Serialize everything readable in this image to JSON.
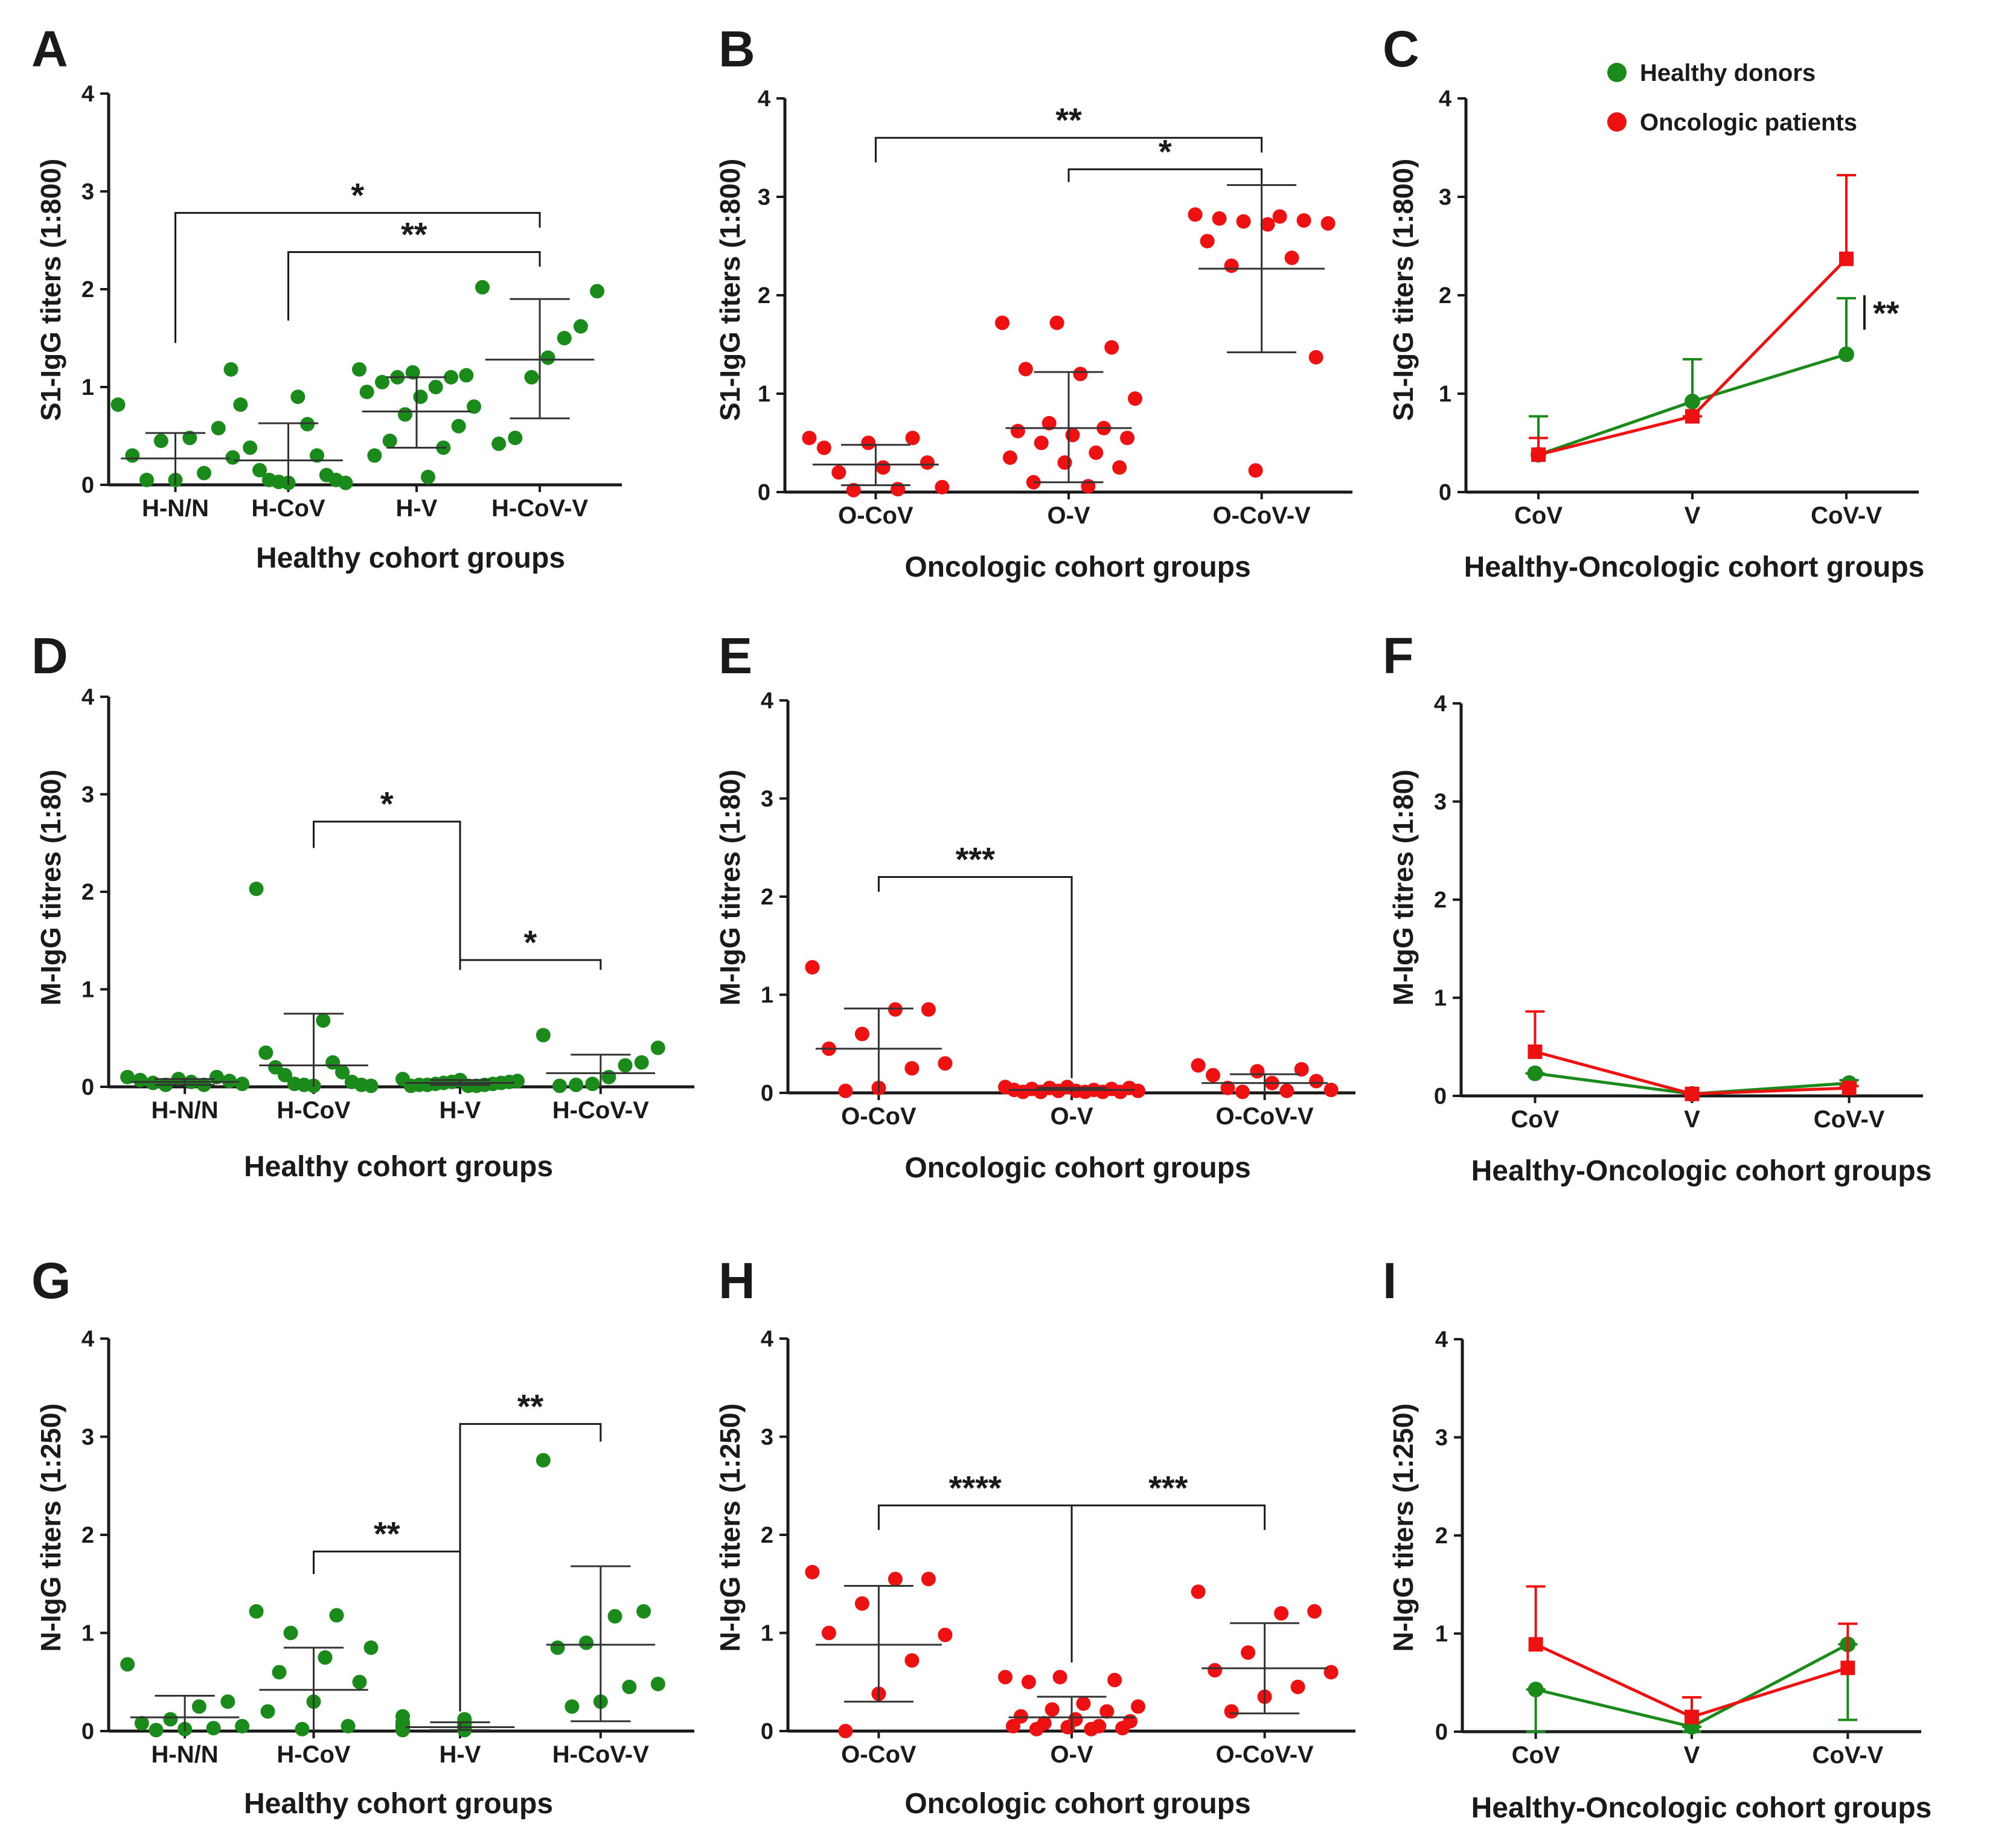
{
  "chart_data": [
    {
      "type": "scatter",
      "panel": "A",
      "title": "",
      "ylabel": "S1-IgG titers (1:800)",
      "xlabel": "Healthy cohort groups",
      "ylim": [
        0,
        4
      ],
      "yticks": [
        "0",
        "1",
        "2",
        "3",
        "4"
      ],
      "color": "#1a8a1a",
      "categories": [
        "H-N/N",
        "H-CoV",
        "H-V",
        "H-CoV-V"
      ],
      "groups": [
        {
          "name": "H-N/N",
          "mean": 0.27,
          "sd_low": 0.0,
          "sd_high": 0.53,
          "points": [
            0.82,
            0.58,
            0.48,
            0.45,
            0.3,
            0.28,
            0.12,
            0.05,
            0.05
          ]
        },
        {
          "name": "H-CoV",
          "mean": 0.25,
          "sd_low": 0.0,
          "sd_high": 0.63,
          "points": [
            1.18,
            0.9,
            0.82,
            0.62,
            0.38,
            0.3,
            0.15,
            0.1,
            0.05,
            0.05,
            0.03,
            0.02,
            0.02
          ]
        },
        {
          "name": "H-V",
          "mean": 0.75,
          "sd_low": 0.38,
          "sd_high": 1.1,
          "points": [
            1.18,
            1.15,
            1.12,
            1.1,
            1.1,
            1.05,
            1.0,
            0.95,
            0.9,
            0.8,
            0.72,
            0.6,
            0.45,
            0.38,
            0.3,
            0.08
          ]
        },
        {
          "name": "H-CoV-V",
          "mean": 1.28,
          "sd_low": 0.68,
          "sd_high": 1.9,
          "points": [
            2.02,
            1.98,
            1.62,
            1.5,
            1.3,
            1.1,
            0.48,
            0.42
          ]
        }
      ],
      "significance": [
        {
          "from": "H-N/N",
          "to": "H-CoV-V",
          "label": "*",
          "level": 2.78,
          "drop_from": 1.45
        },
        {
          "from": "H-CoV",
          "to": "H-CoV-V",
          "label": "**",
          "level": 2.38,
          "drop_from": 1.68
        }
      ]
    },
    {
      "type": "scatter",
      "panel": "B",
      "title": "",
      "ylabel": "S1-IgG titers (1:800)",
      "xlabel": "Oncologic cohort groups",
      "ylim": [
        0,
        4
      ],
      "yticks": [
        "0",
        "1",
        "2",
        "3",
        "4"
      ],
      "color": "#ee1111",
      "categories": [
        "O-CoV",
        "O-V",
        "O-CoV-V"
      ],
      "groups": [
        {
          "name": "O-CoV",
          "mean": 0.28,
          "sd_low": 0.07,
          "sd_high": 0.48,
          "points": [
            0.55,
            0.55,
            0.5,
            0.45,
            0.3,
            0.25,
            0.2,
            0.05,
            0.03,
            0.02
          ]
        },
        {
          "name": "O-V",
          "mean": 0.65,
          "sd_low": 0.1,
          "sd_high": 1.22,
          "points": [
            1.72,
            1.72,
            1.47,
            1.25,
            1.2,
            0.95,
            0.7,
            0.65,
            0.62,
            0.58,
            0.55,
            0.5,
            0.4,
            0.35,
            0.3,
            0.25,
            0.1,
            0.06
          ]
        },
        {
          "name": "O-CoV-V",
          "mean": 2.27,
          "sd_low": 1.42,
          "sd_high": 3.12,
          "points": [
            2.82,
            2.8,
            2.78,
            2.76,
            2.75,
            2.73,
            2.72,
            2.55,
            2.38,
            2.3,
            1.37,
            0.22
          ]
        }
      ],
      "significance": [
        {
          "from": "O-CoV",
          "to": "O-CoV-V",
          "label": "**",
          "level": 3.6,
          "drop_from": 3.35
        },
        {
          "from": "O-V",
          "to": "O-CoV-V",
          "label": "*",
          "level": 3.28,
          "drop_from": 3.15
        }
      ]
    },
    {
      "type": "line",
      "panel": "C",
      "title": "",
      "ylabel": "S1-IgG titers (1:800)",
      "xlabel": "Healthy-Oncologic cohort groups",
      "ylim": [
        0,
        4
      ],
      "yticks": [
        "0",
        "1",
        "2",
        "3",
        "4"
      ],
      "categories": [
        "CoV",
        "V",
        "CoV-V"
      ],
      "series": [
        {
          "name": "Healthy donors",
          "color": "#1a8a1a",
          "marker": "circle",
          "values": [
            0.38,
            0.92,
            1.4
          ],
          "err_high": [
            0.77,
            1.35,
            1.97
          ]
        },
        {
          "name": "Oncologic patients",
          "color": "#ee1111",
          "marker": "square",
          "values": [
            0.38,
            0.77,
            2.37
          ],
          "err_high": [
            0.55,
            0.77,
            3.22
          ]
        }
      ],
      "annotation": "**",
      "legend": [
        "Healthy donors",
        "Oncologic patients"
      ]
    },
    {
      "type": "scatter",
      "panel": "D",
      "title": "",
      "ylabel": "M-IgG titres (1:80)",
      "xlabel": "Healthy cohort groups",
      "ylim": [
        0,
        4
      ],
      "yticks": [
        "0",
        "1",
        "2",
        "3",
        "4"
      ],
      "color": "#1a8a1a",
      "categories": [
        "H-N/N",
        "H-CoV",
        "H-V",
        "H-CoV-V"
      ],
      "groups": [
        {
          "name": "H-N/N",
          "mean": 0.05,
          "sd_low": 0.02,
          "sd_high": 0.08,
          "points": [
            0.1,
            0.1,
            0.08,
            0.07,
            0.06,
            0.05,
            0.04,
            0.03,
            0.02,
            0.02
          ]
        },
        {
          "name": "H-CoV",
          "mean": 0.22,
          "sd_low": 0.0,
          "sd_high": 0.75,
          "points": [
            2.03,
            0.68,
            0.35,
            0.25,
            0.2,
            0.15,
            0.12,
            0.05,
            0.03,
            0.02,
            0.02,
            0.01,
            0.01
          ]
        },
        {
          "name": "H-V",
          "mean": 0.04,
          "sd_low": 0.02,
          "sd_high": 0.07,
          "points": [
            0.08,
            0.07,
            0.06,
            0.05,
            0.05,
            0.04,
            0.04,
            0.03,
            0.03,
            0.02,
            0.02,
            0.02,
            0.01,
            0.01,
            0.01
          ]
        },
        {
          "name": "H-CoV-V",
          "mean": 0.14,
          "sd_low": 0.0,
          "sd_high": 0.33,
          "points": [
            0.53,
            0.4,
            0.25,
            0.22,
            0.1,
            0.03,
            0.02,
            0.01
          ]
        }
      ],
      "significance": [
        {
          "from": "H-CoV",
          "to": "H-V",
          "label": "*",
          "level": 2.72,
          "drop_from": 2.45,
          "drop_to": 1.2
        },
        {
          "from": "H-V",
          "to": "H-CoV-V",
          "label": "*",
          "level": 1.3,
          "drop_from": 1.2,
          "drop_to": 1.2
        }
      ]
    },
    {
      "type": "scatter",
      "panel": "E",
      "title": "",
      "ylabel": "M-IgG titres (1:80)",
      "xlabel": "Oncologic cohort groups",
      "ylim": [
        0,
        4
      ],
      "yticks": [
        "0",
        "1",
        "2",
        "3",
        "4"
      ],
      "color": "#ee1111",
      "categories": [
        "O-CoV",
        "O-V",
        "O-CoV-V"
      ],
      "groups": [
        {
          "name": "O-CoV",
          "mean": 0.45,
          "sd_low": 0.0,
          "sd_high": 0.86,
          "points": [
            1.28,
            0.85,
            0.85,
            0.6,
            0.45,
            0.3,
            0.25,
            0.05,
            0.02
          ]
        },
        {
          "name": "O-V",
          "mean": 0.03,
          "sd_low": 0.0,
          "sd_high": 0.05,
          "points": [
            0.06,
            0.06,
            0.05,
            0.05,
            0.04,
            0.04,
            0.03,
            0.03,
            0.02,
            0.02,
            0.02,
            0.01,
            0.01,
            0.01,
            0.01,
            0.01
          ]
        },
        {
          "name": "O-CoV-V",
          "mean": 0.1,
          "sd_low": 0.0,
          "sd_high": 0.19,
          "points": [
            0.28,
            0.24,
            0.22,
            0.18,
            0.12,
            0.1,
            0.05,
            0.03,
            0.02,
            0.01
          ]
        }
      ],
      "significance": [
        {
          "from": "O-CoV",
          "to": "O-V",
          "label": "***",
          "level": 2.2,
          "drop_from": 2.05,
          "drop_to": 0.15
        }
      ]
    },
    {
      "type": "line",
      "panel": "F",
      "title": "",
      "ylabel": "M-IgG titres (1:80)",
      "xlabel": "Healthy-Oncologic cohort groups",
      "ylim": [
        0,
        4
      ],
      "yticks": [
        "0",
        "1",
        "2",
        "3",
        "4"
      ],
      "categories": [
        "CoV",
        "V",
        "CoV-V"
      ],
      "series": [
        {
          "name": "Healthy donors",
          "color": "#1a8a1a",
          "marker": "circle",
          "values": [
            0.23,
            0.02,
            0.13
          ],
          "err_high": [
            0.23,
            0.02,
            0.16
          ]
        },
        {
          "name": "Oncologic patients",
          "color": "#ee1111",
          "marker": "square",
          "values": [
            0.45,
            0.02,
            0.08
          ],
          "err_high": [
            0.86,
            0.02,
            0.1
          ]
        }
      ]
    },
    {
      "type": "scatter",
      "panel": "G",
      "title": "",
      "ylabel": "N-IgG titers (1:250)",
      "xlabel": "Healthy cohort groups",
      "ylim": [
        0,
        4
      ],
      "yticks": [
        "0",
        "1",
        "2",
        "3",
        "4"
      ],
      "color": "#1a8a1a",
      "categories": [
        "H-N/N",
        "H-CoV",
        "H-V",
        "H-CoV-V"
      ],
      "groups": [
        {
          "name": "H-N/N",
          "mean": 0.14,
          "sd_low": 0.0,
          "sd_high": 0.36,
          "points": [
            0.68,
            0.3,
            0.25,
            0.12,
            0.08,
            0.05,
            0.03,
            0.02,
            0.01
          ]
        },
        {
          "name": "H-CoV",
          "mean": 0.42,
          "sd_low": 0.0,
          "sd_high": 0.85,
          "points": [
            1.22,
            1.18,
            1.0,
            0.85,
            0.75,
            0.6,
            0.5,
            0.3,
            0.2,
            0.05,
            0.02
          ]
        },
        {
          "name": "H-V",
          "mean": 0.04,
          "sd_low": 0.01,
          "sd_high": 0.09,
          "points": [
            0.15,
            0.12,
            0.09,
            0.08,
            0.07,
            0.06,
            0.05,
            0.04,
            0.03,
            0.03,
            0.02,
            0.02,
            0.01,
            0.01
          ]
        },
        {
          "name": "H-CoV-V",
          "mean": 0.88,
          "sd_low": 0.1,
          "sd_high": 1.68,
          "points": [
            2.76,
            1.22,
            1.17,
            0.9,
            0.85,
            0.48,
            0.45,
            0.3,
            0.25
          ]
        }
      ],
      "significance": [
        {
          "from": "H-CoV",
          "to": "H-V",
          "label": "**",
          "level": 1.83,
          "drop_from": 1.6,
          "drop_to": 0.2
        },
        {
          "from": "H-V",
          "to": "H-CoV-V",
          "label": "**",
          "level": 3.13,
          "drop_to": 2.95,
          "drop_from": 0.2
        }
      ]
    },
    {
      "type": "scatter",
      "panel": "H",
      "title": "",
      "ylabel": "N-IgG titers (1:250)",
      "xlabel": "Oncologic cohort groups",
      "ylim": [
        0,
        4
      ],
      "yticks": [
        "0",
        "1",
        "2",
        "3",
        "4"
      ],
      "color": "#ee1111",
      "categories": [
        "O-CoV",
        "O-V",
        "O-CoV-V"
      ],
      "groups": [
        {
          "name": "O-CoV",
          "mean": 0.88,
          "sd_low": 0.3,
          "sd_high": 1.48,
          "points": [
            1.62,
            1.55,
            1.55,
            1.3,
            1.0,
            0.98,
            0.72,
            0.38,
            0.0
          ]
        },
        {
          "name": "O-V",
          "mean": 0.14,
          "sd_low": 0.0,
          "sd_high": 0.35,
          "points": [
            0.55,
            0.55,
            0.52,
            0.5,
            0.28,
            0.25,
            0.22,
            0.2,
            0.15,
            0.12,
            0.1,
            0.08,
            0.05,
            0.05,
            0.04,
            0.03,
            0.02,
            0.02
          ]
        },
        {
          "name": "O-CoV-V",
          "mean": 0.64,
          "sd_low": 0.18,
          "sd_high": 1.1,
          "points": [
            1.42,
            1.22,
            1.2,
            0.8,
            0.62,
            0.6,
            0.45,
            0.35,
            0.2
          ]
        }
      ],
      "significance": [
        {
          "from": "O-CoV",
          "to": "O-V",
          "label": "****",
          "level": 2.3,
          "drop_from": 2.05,
          "drop_to": 0.7
        },
        {
          "from": "O-V",
          "to": "O-CoV-V",
          "label": "***",
          "level": 2.3,
          "drop_from": 0.7,
          "drop_to": 2.05
        }
      ]
    },
    {
      "type": "line",
      "panel": "I",
      "title": "",
      "ylabel": "N-IgG titers (1:250)",
      "xlabel": "Healthy-Oncologic cohort groups",
      "ylim": [
        0,
        4
      ],
      "yticks": [
        "0",
        "1",
        "2",
        "3",
        "4"
      ],
      "categories": [
        "CoV",
        "V",
        "CoV-V"
      ],
      "series": [
        {
          "name": "Healthy donors",
          "color": "#1a8a1a",
          "marker": "circle",
          "values": [
            0.43,
            0.05,
            0.89
          ],
          "err_high": [
            0.43,
            0.05,
            0.89
          ],
          "err_low": [
            0.0,
            0.0,
            0.12
          ]
        },
        {
          "name": "Oncologic patients",
          "color": "#ee1111",
          "marker": "square",
          "values": [
            0.89,
            0.15,
            0.65
          ],
          "err_high": [
            1.48,
            0.35,
            1.1
          ]
        }
      ]
    }
  ]
}
